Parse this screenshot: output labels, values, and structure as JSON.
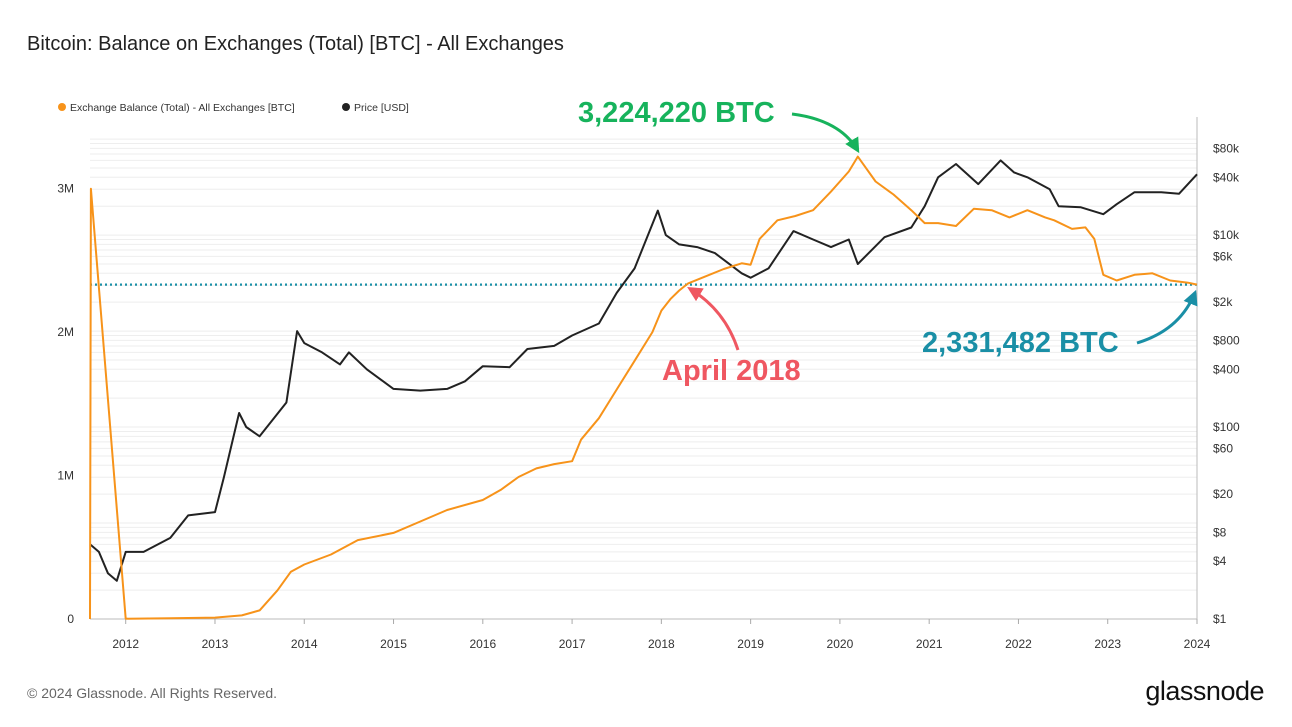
{
  "header": {
    "title": "Bitcoin: Balance on Exchanges (Total) [BTC] - All Exchanges"
  },
  "footer": {
    "copyright": "© 2024 Glassnode. All Rights Reserved.",
    "brand": "glassnode"
  },
  "colors": {
    "balance": "#f7931a",
    "price": "#222222",
    "peak": "#17b35c",
    "april": "#ef5761",
    "current": "#1a8fa6",
    "dotted": "#1a8fa6"
  },
  "chart_data": {
    "type": "line",
    "title": "Bitcoin: Balance on Exchanges (Total) [BTC] - All Exchanges",
    "legend": [
      {
        "name": "Exchange Balance (Total) - All Exchanges [BTC]",
        "color": "#f7931a"
      },
      {
        "name": "Price [USD]",
        "color": "#222222"
      }
    ],
    "legend_position": "top-left",
    "grid": true,
    "x_range": [
      2011.6,
      2024.0
    ],
    "x_ticks": [
      2012,
      2013,
      2014,
      2015,
      2016,
      2017,
      2018,
      2019,
      2020,
      2021,
      2022,
      2023,
      2024
    ],
    "x_tick_labels": [
      "2012",
      "2013",
      "2014",
      "2015",
      "2016",
      "2017",
      "2018",
      "2019",
      "2020",
      "2021",
      "2022",
      "2023",
      "2024"
    ],
    "y_left_range": [
      0,
      3500000
    ],
    "y_left_ticks": [
      0,
      1000000,
      2000000,
      3000000
    ],
    "y_left_tick_labels": [
      "0",
      "1M",
      "2M",
      "3M"
    ],
    "y_right_scale": "log",
    "y_right_range": [
      1,
      170000
    ],
    "y_right_ticks": [
      1,
      4,
      8,
      20,
      60,
      100,
      400,
      800,
      2000,
      6000,
      10000,
      40000,
      80000
    ],
    "y_right_tick_labels": [
      "$1",
      "$4",
      "$8",
      "$20",
      "$60",
      "$100",
      "$400",
      "$800",
      "$2k",
      "$6k",
      "$10k",
      "$40k",
      "$80k"
    ],
    "series": [
      {
        "name": "Exchange Balance (Total) - All Exchanges [BTC]",
        "axis": "left",
        "x": [
          2011.6,
          2011.61,
          2012.0,
          2012.5,
          2013.0,
          2013.3,
          2013.5,
          2013.7,
          2013.85,
          2014.0,
          2014.3,
          2014.6,
          2015.0,
          2015.3,
          2015.6,
          2016.0,
          2016.2,
          2016.4,
          2016.6,
          2016.8,
          2017.0,
          2017.1,
          2017.3,
          2017.5,
          2017.7,
          2017.9,
          2018.0,
          2018.1,
          2018.2,
          2018.3,
          2018.5,
          2018.7,
          2018.9,
          2019.0,
          2019.1,
          2019.3,
          2019.5,
          2019.7,
          2019.9,
          2020.1,
          2020.2,
          2020.4,
          2020.6,
          2020.8,
          2020.95,
          2021.1,
          2021.3,
          2021.5,
          2021.7,
          2021.9,
          2022.1,
          2022.3,
          2022.4,
          2022.6,
          2022.75,
          2022.85,
          2022.95,
          2023.1,
          2023.3,
          2023.5,
          2023.7,
          2023.9,
          2024.0
        ],
        "values": [
          0,
          3000000,
          2000,
          5000,
          10000,
          25000,
          60000,
          200000,
          330000,
          380000,
          450000,
          550000,
          600000,
          680000,
          760000,
          830000,
          900000,
          990000,
          1050000,
          1080000,
          1100000,
          1250000,
          1400000,
          1600000,
          1800000,
          2000000,
          2150000,
          2230000,
          2290000,
          2340000,
          2390000,
          2440000,
          2480000,
          2470000,
          2650000,
          2780000,
          2810000,
          2850000,
          2980000,
          3120000,
          3224220,
          3050000,
          2960000,
          2850000,
          2760000,
          2760000,
          2740000,
          2860000,
          2850000,
          2800000,
          2850000,
          2800000,
          2780000,
          2720000,
          2730000,
          2650000,
          2400000,
          2360000,
          2400000,
          2410000,
          2360000,
          2345000,
          2331482
        ]
      },
      {
        "name": "Price [USD]",
        "axis": "right",
        "x": [
          2011.6,
          2011.7,
          2011.8,
          2011.9,
          2012.0,
          2012.2,
          2012.5,
          2012.7,
          2013.0,
          2013.1,
          2013.27,
          2013.35,
          2013.5,
          2013.8,
          2013.92,
          2014.0,
          2014.2,
          2014.4,
          2014.5,
          2014.7,
          2015.0,
          2015.3,
          2015.6,
          2015.8,
          2016.0,
          2016.3,
          2016.5,
          2016.8,
          2017.0,
          2017.3,
          2017.5,
          2017.7,
          2017.96,
          2018.05,
          2018.2,
          2018.4,
          2018.6,
          2018.9,
          2019.0,
          2019.2,
          2019.48,
          2019.7,
          2019.9,
          2020.1,
          2020.2,
          2020.5,
          2020.8,
          2020.95,
          2021.1,
          2021.3,
          2021.55,
          2021.8,
          2021.95,
          2022.1,
          2022.35,
          2022.45,
          2022.7,
          2022.95,
          2023.1,
          2023.3,
          2023.6,
          2023.8,
          2024.0
        ],
        "values": [
          6,
          5,
          3,
          2.5,
          5,
          5,
          7,
          12,
          13,
          30,
          140,
          100,
          80,
          180,
          1000,
          750,
          600,
          450,
          600,
          400,
          250,
          240,
          250,
          300,
          430,
          420,
          650,
          700,
          900,
          1200,
          2500,
          4500,
          18000,
          10000,
          8000,
          7500,
          6500,
          4000,
          3600,
          4500,
          11000,
          9000,
          7500,
          9000,
          5000,
          9500,
          12000,
          20000,
          40000,
          55000,
          34000,
          60000,
          45000,
          40000,
          30000,
          20000,
          19500,
          16500,
          21000,
          28000,
          28000,
          27000,
          43000
        ]
      }
    ],
    "annotations": [
      {
        "text": "3,224,220 BTC",
        "x": 2020.2,
        "y": 3224220,
        "color": "#17b35c"
      },
      {
        "text": "April 2018",
        "x": 2018.25,
        "y": 2331482,
        "color": "#ef5761"
      },
      {
        "text": "2,331,482 BTC",
        "x": 2024.0,
        "y": 2331482,
        "color": "#1a8fa6"
      }
    ],
    "reference_line": {
      "y": 2331482,
      "style": "dotted",
      "color": "#1a8fa6"
    }
  }
}
